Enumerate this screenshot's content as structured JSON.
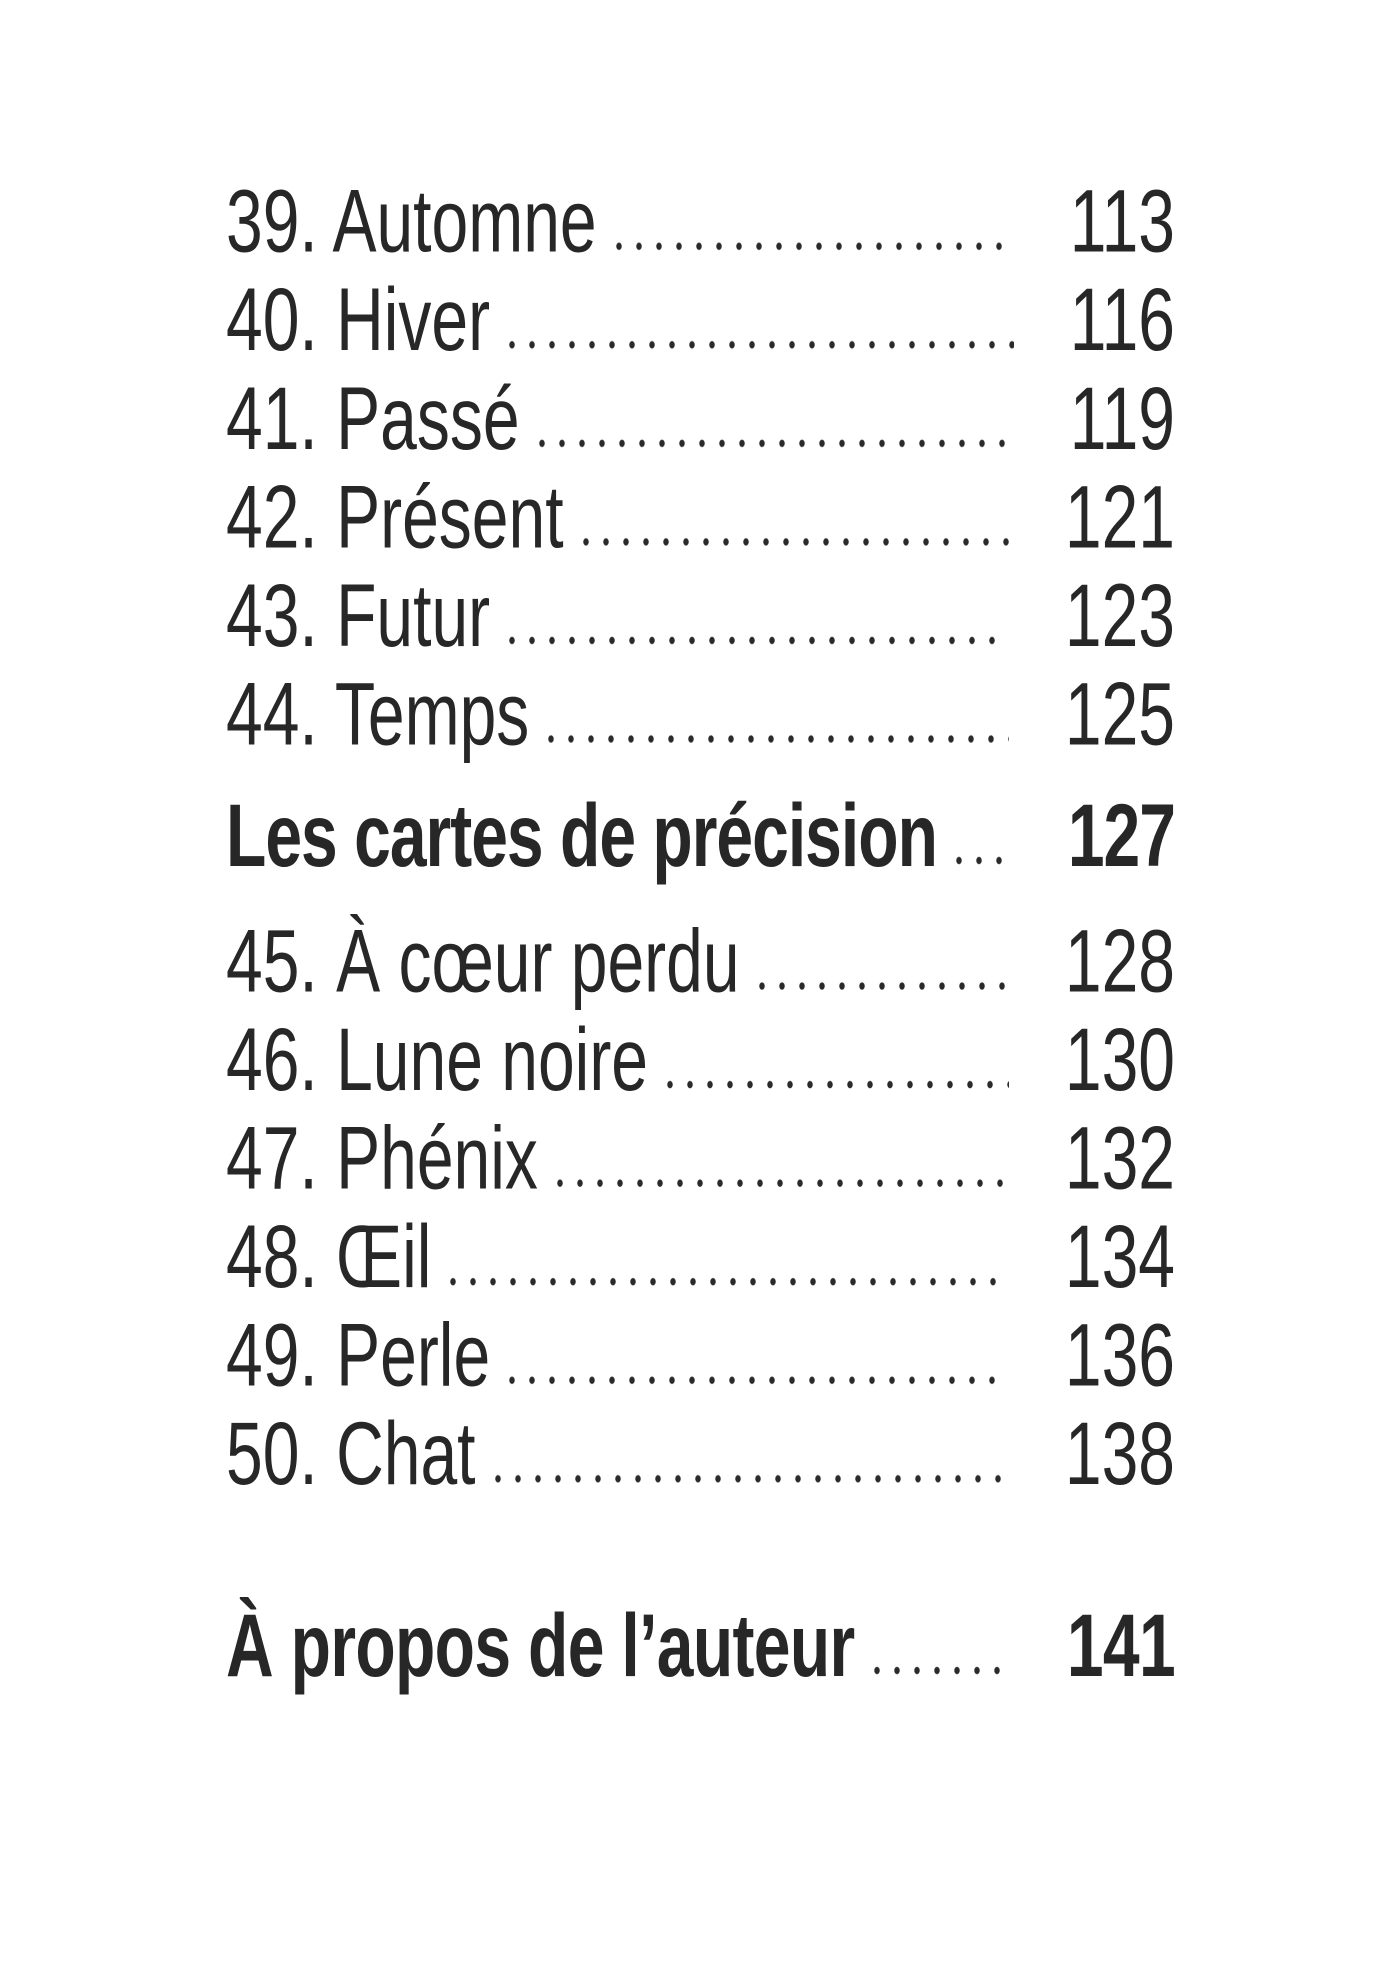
{
  "page": {
    "background_color": "#ffffff",
    "text_color": "#272727"
  },
  "toc": {
    "entries": [
      {
        "label": "39. Automne",
        "page": "113",
        "style": "normal"
      },
      {
        "label": "40. Hiver",
        "page": "116",
        "style": "normal"
      },
      {
        "label": "41. Passé",
        "page": "119",
        "style": "normal"
      },
      {
        "label": "42. Présent",
        "page": "121",
        "style": "normal"
      },
      {
        "label": "43. Futur",
        "page": "123",
        "style": "normal"
      },
      {
        "label": "44. Temps",
        "page": "125",
        "style": "normal"
      },
      {
        "label": "Les cartes de précision",
        "page": "127",
        "style": "section-header"
      },
      {
        "label": "45. À cœur perdu",
        "page": "128",
        "style": "normal"
      },
      {
        "label": "46. Lune noire",
        "page": "130",
        "style": "normal"
      },
      {
        "label": "47. Phénix",
        "page": "132",
        "style": "normal"
      },
      {
        "label": "48. Œil",
        "page": "134",
        "style": "normal"
      },
      {
        "label": "49. Perle",
        "page": "136",
        "style": "normal"
      },
      {
        "label": "50. Chat",
        "page": "138",
        "style": "normal"
      },
      {
        "label": "À propos de l’auteur",
        "page": "141",
        "style": "end-matter"
      }
    ]
  }
}
